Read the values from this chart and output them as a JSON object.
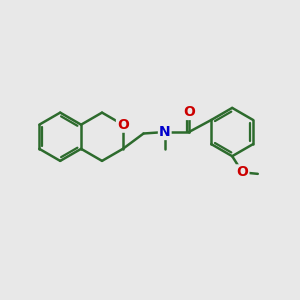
{
  "background_color": "#e8e8e8",
  "bond_color": "#2d6b2d",
  "heteroatom_O": "#cc0000",
  "heteroatom_N": "#0000cc",
  "line_width": 1.8,
  "font_size": 10,
  "fig_size": [
    3.0,
    3.0
  ],
  "dpi": 100,
  "xlim": [
    0,
    10
  ],
  "ylim": [
    0,
    10
  ]
}
